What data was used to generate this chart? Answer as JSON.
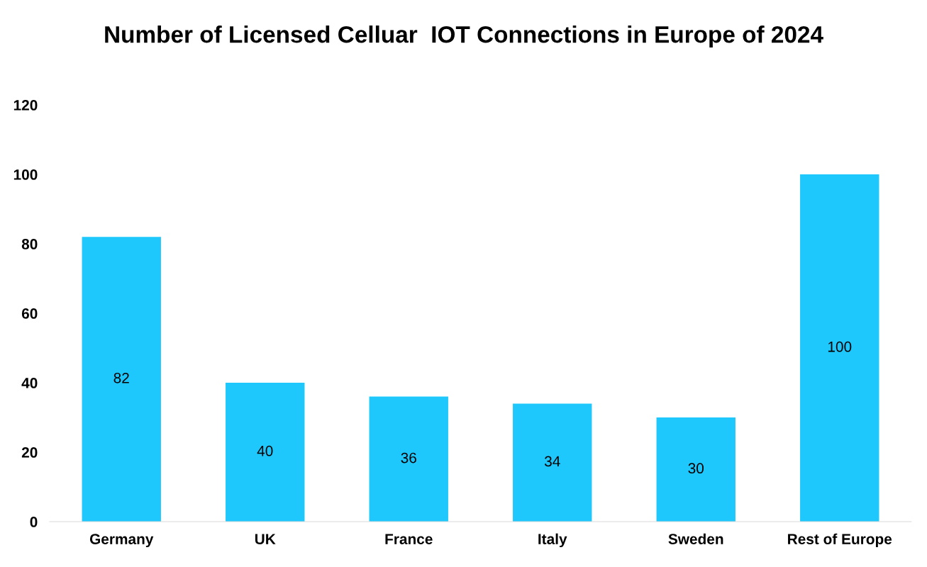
{
  "chart_data": {
    "type": "bar",
    "title": "Number of Licensed Celluar  IOT Connections in Europe of 2024",
    "categories": [
      "Germany",
      "UK",
      "France",
      "Italy",
      "Sweden",
      "Rest of Europe"
    ],
    "values": [
      82,
      40,
      36,
      34,
      30,
      100
    ],
    "color": "#1ec8fc",
    "ylim": [
      0,
      120
    ],
    "yticks": [
      0,
      20,
      40,
      60,
      80,
      100,
      120
    ],
    "grid": false,
    "legend": false,
    "data_labels": true
  }
}
